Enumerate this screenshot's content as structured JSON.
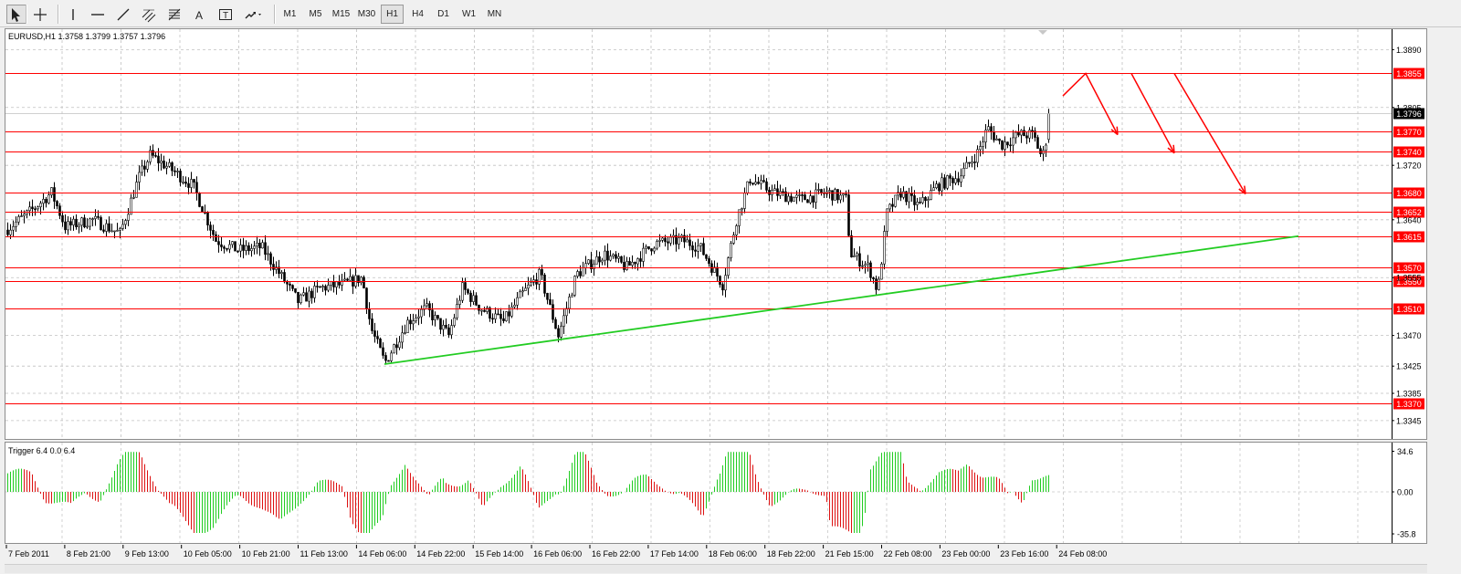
{
  "toolbar": {
    "tools": [
      {
        "name": "cursor-icon"
      },
      {
        "name": "crosshair-icon"
      },
      {
        "name": "vertical-line-icon"
      },
      {
        "name": "horizontal-line-icon"
      },
      {
        "name": "trendline-icon"
      },
      {
        "name": "equidistant-channel-icon"
      },
      {
        "name": "fibonacci-retracement-icon"
      },
      {
        "name": "text-icon"
      },
      {
        "name": "text-label-icon"
      },
      {
        "name": "arrows-icon"
      }
    ],
    "timeframes": [
      "M1",
      "M5",
      "M15",
      "M30",
      "H1",
      "H4",
      "D1",
      "W1",
      "MN"
    ],
    "active_timeframe": "H1"
  },
  "chart": {
    "header": "EURUSD,H1  1.3758 1.3799 1.3757 1.3796",
    "symbol": "EURUSD",
    "timeframe": "H1",
    "ohlc": {
      "open": 1.3758,
      "high": 1.3799,
      "low": 1.3757,
      "close": 1.3796
    },
    "current_price_label": "1.3796"
  },
  "indicator": {
    "title": "Trigger 6.4 0.0 6.4",
    "scale_labels": [
      "34.6",
      "0.00",
      "-35.8"
    ],
    "colors": {
      "up": "#22cc22",
      "down": "#dd1111"
    }
  },
  "chart_data": {
    "type": "candlestick",
    "price_axis_labels": [
      "1.3890",
      "1.3805",
      "1.3720",
      "1.3640",
      "1.3555",
      "1.3470",
      "1.3425",
      "1.3385",
      "1.3345"
    ],
    "ylim": [
      1.3318,
      1.392
    ],
    "x_labels": [
      "7 Feb 2011",
      "8 Feb 21:00",
      "9 Feb 13:00",
      "10 Feb 05:00",
      "10 Feb 21:00",
      "11 Feb 13:00",
      "14 Feb 06:00",
      "14 Feb 22:00",
      "15 Feb 14:00",
      "16 Feb 06:00",
      "16 Feb 22:00",
      "17 Feb 14:00",
      "18 Feb 06:00",
      "18 Feb 22:00",
      "21 Feb 15:00",
      "22 Feb 08:00",
      "23 Feb 00:00",
      "23 Feb 16:00",
      "24 Feb 08:00"
    ],
    "grid": true,
    "horizontal_levels": [
      1.3855,
      1.377,
      1.374,
      1.368,
      1.3652,
      1.3615,
      1.357,
      1.355,
      1.351,
      1.337
    ],
    "level_labels": [
      "1.3855",
      "1.3770",
      "1.3740",
      "1.3680",
      "1.3652",
      "1.3615",
      "1.3570",
      "1.3550",
      "1.3510",
      "1.3370"
    ],
    "level_color": "#ff0000",
    "price_path": [
      [
        0,
        1.3625
      ],
      [
        25,
        1.365
      ],
      [
        50,
        1.368
      ],
      [
        65,
        1.363
      ],
      [
        95,
        1.364
      ],
      [
        125,
        1.362
      ],
      [
        145,
        1.37
      ],
      [
        158,
        1.3735
      ],
      [
        180,
        1.3715
      ],
      [
        205,
        1.369
      ],
      [
        230,
        1.361
      ],
      [
        255,
        1.3595
      ],
      [
        280,
        1.36
      ],
      [
        300,
        1.356
      ],
      [
        320,
        1.352
      ],
      [
        345,
        1.354
      ],
      [
        370,
        1.3545
      ],
      [
        390,
        1.3555
      ],
      [
        400,
        1.348
      ],
      [
        415,
        1.343
      ],
      [
        440,
        1.349
      ],
      [
        460,
        1.351
      ],
      [
        485,
        1.347
      ],
      [
        500,
        1.354
      ],
      [
        520,
        1.351
      ],
      [
        545,
        1.349
      ],
      [
        565,
        1.353
      ],
      [
        585,
        1.356
      ],
      [
        605,
        1.347
      ],
      [
        625,
        1.356
      ],
      [
        655,
        1.359
      ],
      [
        680,
        1.357
      ],
      [
        710,
        1.3605
      ],
      [
        740,
        1.361
      ],
      [
        760,
        1.36
      ],
      [
        785,
        1.3545
      ],
      [
        800,
        1.364
      ],
      [
        815,
        1.37
      ],
      [
        840,
        1.368
      ],
      [
        870,
        1.367
      ],
      [
        900,
        1.368
      ],
      [
        920,
        1.367
      ],
      [
        925,
        1.359
      ],
      [
        945,
        1.357
      ],
      [
        955,
        1.3535
      ],
      [
        965,
        1.365
      ],
      [
        980,
        1.368
      ],
      [
        1000,
        1.366
      ],
      [
        1020,
        1.369
      ],
      [
        1045,
        1.3705
      ],
      [
        1065,
        1.374
      ],
      [
        1075,
        1.3775
      ],
      [
        1090,
        1.375
      ],
      [
        1110,
        1.3765
      ],
      [
        1125,
        1.3765
      ],
      [
        1135,
        1.373
      ],
      [
        1145,
        1.3796
      ]
    ],
    "trendlines": [
      {
        "color": "#22cc22",
        "points": [
          [
            415,
            1.3428
          ],
          [
            1416,
            1.3616
          ]
        ]
      }
    ],
    "arrows": [
      {
        "color": "#ff0000",
        "points": [
          [
            1158,
            1.3822
          ],
          [
            1183,
            1.3855
          ],
          [
            1218,
            1.3765
          ]
        ]
      },
      {
        "color": "#ff0000",
        "points": [
          [
            1233,
            1.3855
          ],
          [
            1280,
            1.3738
          ]
        ]
      },
      {
        "color": "#ff0000",
        "points": [
          [
            1280,
            1.3855
          ],
          [
            1358,
            1.3678
          ]
        ]
      }
    ]
  }
}
